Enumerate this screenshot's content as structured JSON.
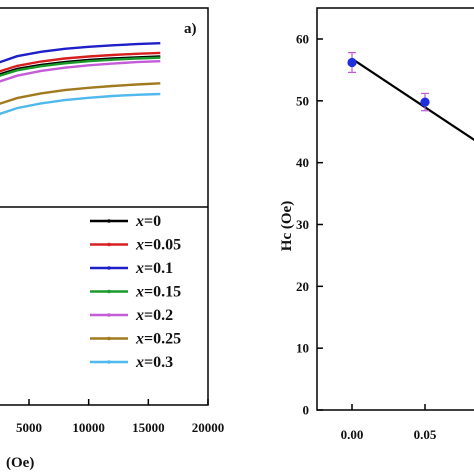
{
  "chart_data": [
    {
      "type": "line",
      "panel_label": "a)",
      "xlabel": "(Oe)",
      "ylabel": "",
      "x_ticks": [
        "5000",
        "10000",
        "15000",
        "20000"
      ],
      "x_visible_range": [
        1300,
        20000
      ],
      "legend_position": "bottom-right",
      "series": [
        {
          "name": "x=0",
          "x_prefix": "x",
          "x_value": "=0",
          "color": "#000000",
          "points": [
            [
              1300,
              63.0
            ],
            [
              2000,
              65.0
            ],
            [
              4000,
              67.5
            ],
            [
              6000,
              68.8
            ],
            [
              8000,
              69.8
            ],
            [
              10000,
              70.5
            ],
            [
              12000,
              71.0
            ],
            [
              14000,
              71.4
            ],
            [
              16000,
              71.7
            ]
          ]
        },
        {
          "name": "x=0.05",
          "x_prefix": "x",
          "x_value": "=0.05",
          "color": "#d62020",
          "points": [
            [
              1300,
              64.0
            ],
            [
              2000,
              66.0
            ],
            [
              4000,
              68.5
            ],
            [
              6000,
              70.0
            ],
            [
              8000,
              71.0
            ],
            [
              10000,
              71.7
            ],
            [
              12000,
              72.2
            ],
            [
              14000,
              72.6
            ],
            [
              16000,
              72.9
            ]
          ]
        },
        {
          "name": "x=0.1",
          "x_prefix": "x",
          "x_value": "=0.1",
          "color": "#1f1fc8",
          "points": [
            [
              1300,
              67.0
            ],
            [
              2000,
              69.0
            ],
            [
              4000,
              71.8
            ],
            [
              6000,
              73.3
            ],
            [
              8000,
              74.3
            ],
            [
              10000,
              75.0
            ],
            [
              12000,
              75.5
            ],
            [
              14000,
              75.9
            ],
            [
              16000,
              76.2
            ]
          ]
        },
        {
          "name": "x=0.15",
          "x_prefix": "x",
          "x_value": "=0.15",
          "color": "#1a9a2a",
          "points": [
            [
              1300,
              62.5
            ],
            [
              2000,
              64.5
            ],
            [
              4000,
              67.0
            ],
            [
              6000,
              68.4
            ],
            [
              8000,
              69.4
            ],
            [
              10000,
              70.1
            ],
            [
              12000,
              70.6
            ],
            [
              14000,
              71.0
            ],
            [
              16000,
              71.3
            ]
          ]
        },
        {
          "name": "x=0.2",
          "x_prefix": "x",
          "x_value": "=0.2",
          "color": "#c45cd8",
          "points": [
            [
              1300,
              60.5
            ],
            [
              2000,
              62.5
            ],
            [
              4000,
              65.2
            ],
            [
              6000,
              66.8
            ],
            [
              8000,
              67.9
            ],
            [
              10000,
              68.7
            ],
            [
              12000,
              69.3
            ],
            [
              14000,
              69.8
            ],
            [
              16000,
              70.1
            ]
          ]
        },
        {
          "name": "x=0.25",
          "x_prefix": "x",
          "x_value": "=0.25",
          "color": "#a07a1e",
          "points": [
            [
              1300,
              53.0
            ],
            [
              2000,
              55.0
            ],
            [
              4000,
              57.6
            ],
            [
              6000,
              59.2
            ],
            [
              8000,
              60.3
            ],
            [
              10000,
              61.1
            ],
            [
              12000,
              61.7
            ],
            [
              14000,
              62.2
            ],
            [
              16000,
              62.6
            ]
          ]
        },
        {
          "name": "x=0.3",
          "x_prefix": "x",
          "x_value": "=0.3",
          "color": "#4fb8ec",
          "points": [
            [
              1300,
              49.5
            ],
            [
              2000,
              51.5
            ],
            [
              4000,
              54.2
            ],
            [
              6000,
              55.8
            ],
            [
              8000,
              56.9
            ],
            [
              10000,
              57.7
            ],
            [
              12000,
              58.3
            ],
            [
              14000,
              58.7
            ],
            [
              16000,
              59.0
            ]
          ]
        }
      ]
    },
    {
      "type": "scatter",
      "ylabel": "Hc (Oe)",
      "xlabel": "",
      "x_ticks": [
        "0.00",
        "0.05"
      ],
      "y_ticks": [
        "0",
        "10",
        "20",
        "30",
        "40",
        "50",
        "60"
      ],
      "ylim": [
        0,
        65
      ],
      "x_visible_range": [
        -0.07,
        0.12
      ],
      "points": [
        {
          "x": 0.0,
          "y": 56.2,
          "err": 1.6
        },
        {
          "x": 0.05,
          "y": 49.8,
          "err": 1.4
        }
      ],
      "fit_line": {
        "x": [
          0.0,
          0.12
        ],
        "y": [
          56.8,
          38.0
        ]
      },
      "marker_color": "#1f2fe0"
    }
  ]
}
